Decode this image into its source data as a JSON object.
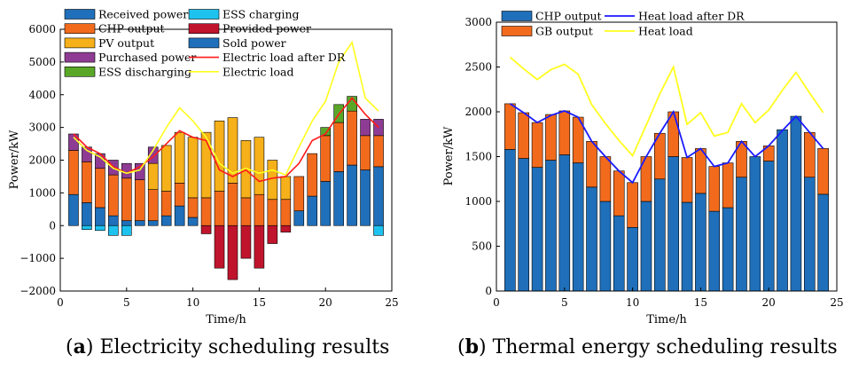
{
  "chart_data": [
    {
      "type": "bar",
      "id": "electricity",
      "caption_label": "a",
      "caption_text": " Electricity scheduling results",
      "xlabel": "Time/h",
      "ylabel": "Power/kW",
      "xlim": [
        0,
        25
      ],
      "ylim": [
        -2000,
        6000
      ],
      "xticks": [
        "0",
        "5",
        "10",
        "15",
        "20",
        "25"
      ],
      "yticks": [
        "−2000",
        "−1000",
        "0",
        "1000",
        "2000",
        "3000",
        "4000",
        "5000",
        "6000"
      ],
      "categories": [
        1,
        2,
        3,
        4,
        5,
        6,
        7,
        8,
        9,
        10,
        11,
        12,
        13,
        14,
        15,
        16,
        17,
        18,
        19,
        20,
        21,
        22,
        23,
        24
      ],
      "series": [
        {
          "name": "Received power",
          "color": "#1f6fba",
          "kind": "bar",
          "values": [
            950,
            700,
            550,
            300,
            150,
            150,
            150,
            300,
            600,
            250,
            0,
            0,
            0,
            0,
            0,
            0,
            0,
            450,
            900,
            1350,
            1650,
            1850,
            1700,
            1800
          ]
        },
        {
          "name": "CHP output",
          "color": "#f26b1d",
          "kind": "bar",
          "values": [
            1350,
            1250,
            1200,
            1250,
            1300,
            1250,
            950,
            750,
            700,
            600,
            850,
            1050,
            1300,
            850,
            950,
            800,
            800,
            1050,
            1300,
            1400,
            1500,
            1650,
            1050,
            950
          ]
        },
        {
          "name": "PV output",
          "color": "#f6b01a",
          "kind": "bar",
          "values": [
            0,
            0,
            0,
            0,
            0,
            0,
            800,
            1400,
            1550,
            1850,
            2000,
            2150,
            2000,
            1750,
            1750,
            1200,
            700,
            0,
            0,
            0,
            0,
            0,
            0,
            0
          ]
        },
        {
          "name": "Purchased power",
          "color": "#8e3b93",
          "kind": "bar",
          "values": [
            500,
            450,
            450,
            450,
            450,
            500,
            500,
            0,
            0,
            0,
            0,
            0,
            0,
            0,
            0,
            0,
            0,
            0,
            0,
            0,
            0,
            0,
            500,
            500
          ]
        },
        {
          "name": "ESS discharging",
          "color": "#5aa728",
          "kind": "bar",
          "values": [
            0,
            0,
            0,
            0,
            0,
            0,
            0,
            0,
            0,
            0,
            0,
            0,
            0,
            0,
            0,
            0,
            0,
            0,
            0,
            250,
            550,
            450,
            0,
            0
          ]
        },
        {
          "name": "ESS charging",
          "color": "#1ec2ef",
          "kind": "bar",
          "values": [
            0,
            -120,
            -150,
            -300,
            -300,
            0,
            0,
            0,
            0,
            0,
            0,
            0,
            0,
            0,
            0,
            0,
            0,
            0,
            0,
            0,
            0,
            0,
            0,
            -300
          ]
        },
        {
          "name": "Provided power",
          "color": "#c0142c",
          "kind": "bar",
          "values": [
            0,
            0,
            0,
            0,
            0,
            0,
            0,
            0,
            0,
            0,
            -250,
            -1300,
            -1650,
            -1000,
            -1300,
            -550,
            -200,
            0,
            0,
            0,
            0,
            0,
            0,
            0
          ]
        },
        {
          "name": "Sold power",
          "color": "#1f6fba",
          "kind": "bar",
          "values": [
            0,
            0,
            0,
            0,
            0,
            0,
            0,
            0,
            0,
            0,
            0,
            0,
            0,
            0,
            0,
            0,
            0,
            0,
            0,
            0,
            0,
            0,
            0,
            0
          ]
        },
        {
          "name": "Electric load after DR",
          "color": "#ff1a1a",
          "kind": "line",
          "values": [
            2800,
            2400,
            2200,
            1800,
            1600,
            1800,
            2100,
            2500,
            2900,
            2700,
            2600,
            1700,
            1500,
            1700,
            1350,
            1450,
            1500,
            1900,
            2600,
            2800,
            3400,
            3900,
            3400,
            3000
          ]
        },
        {
          "name": "Electric load",
          "color": "#ffff1e",
          "kind": "line",
          "values": [
            2700,
            2300,
            2100,
            1750,
            1600,
            1700,
            2300,
            3000,
            3600,
            3200,
            2700,
            1900,
            1600,
            1750,
            1600,
            1700,
            1550,
            2400,
            3200,
            3800,
            5000,
            5600,
            3900,
            3500
          ]
        }
      ]
    },
    {
      "type": "bar",
      "id": "thermal",
      "caption_label": "b",
      "caption_text": " Thermal energy scheduling results",
      "xlabel": "Time/h",
      "ylabel": "Power/kW",
      "xlim": [
        0,
        25
      ],
      "ylim": [
        0,
        3000
      ],
      "xticks": [
        "0",
        "5",
        "10",
        "15",
        "20",
        "25"
      ],
      "yticks": [
        "0",
        "500",
        "1000",
        "1500",
        "2000",
        "2500",
        "3000"
      ],
      "categories": [
        1,
        2,
        3,
        4,
        5,
        6,
        7,
        8,
        9,
        10,
        11,
        12,
        13,
        14,
        15,
        16,
        17,
        18,
        19,
        20,
        21,
        22,
        23,
        24
      ],
      "series": [
        {
          "name": "CHP output",
          "color": "#1f6fba",
          "kind": "bar",
          "values": [
            1580,
            1480,
            1380,
            1460,
            1520,
            1430,
            1160,
            1000,
            840,
            710,
            1000,
            1250,
            1500,
            990,
            1090,
            890,
            930,
            1270,
            1500,
            1450,
            1800,
            1950,
            1270,
            1080
          ]
        },
        {
          "name": "GB output",
          "color": "#f26b1d",
          "kind": "bar",
          "values": [
            510,
            510,
            500,
            510,
            490,
            510,
            510,
            500,
            500,
            500,
            500,
            510,
            500,
            500,
            500,
            500,
            500,
            400,
            0,
            170,
            0,
            0,
            500,
            510
          ]
        },
        {
          "name": "Heat load after DR",
          "color": "#1a1aff",
          "kind": "line",
          "values": [
            2090,
            1990,
            1880,
            1960,
            2010,
            1940,
            1670,
            1500,
            1340,
            1210,
            1500,
            1760,
            2000,
            1490,
            1590,
            1390,
            1430,
            1670,
            1500,
            1620,
            1790,
            1950,
            1770,
            1590
          ]
        },
        {
          "name": "Heat load",
          "color": "#ffff1e",
          "kind": "line",
          "values": [
            2610,
            2480,
            2360,
            2470,
            2530,
            2420,
            2080,
            1870,
            1680,
            1510,
            1850,
            2200,
            2500,
            1860,
            1990,
            1730,
            1770,
            2090,
            1880,
            2020,
            2240,
            2440,
            2210,
            1990
          ]
        }
      ]
    }
  ]
}
